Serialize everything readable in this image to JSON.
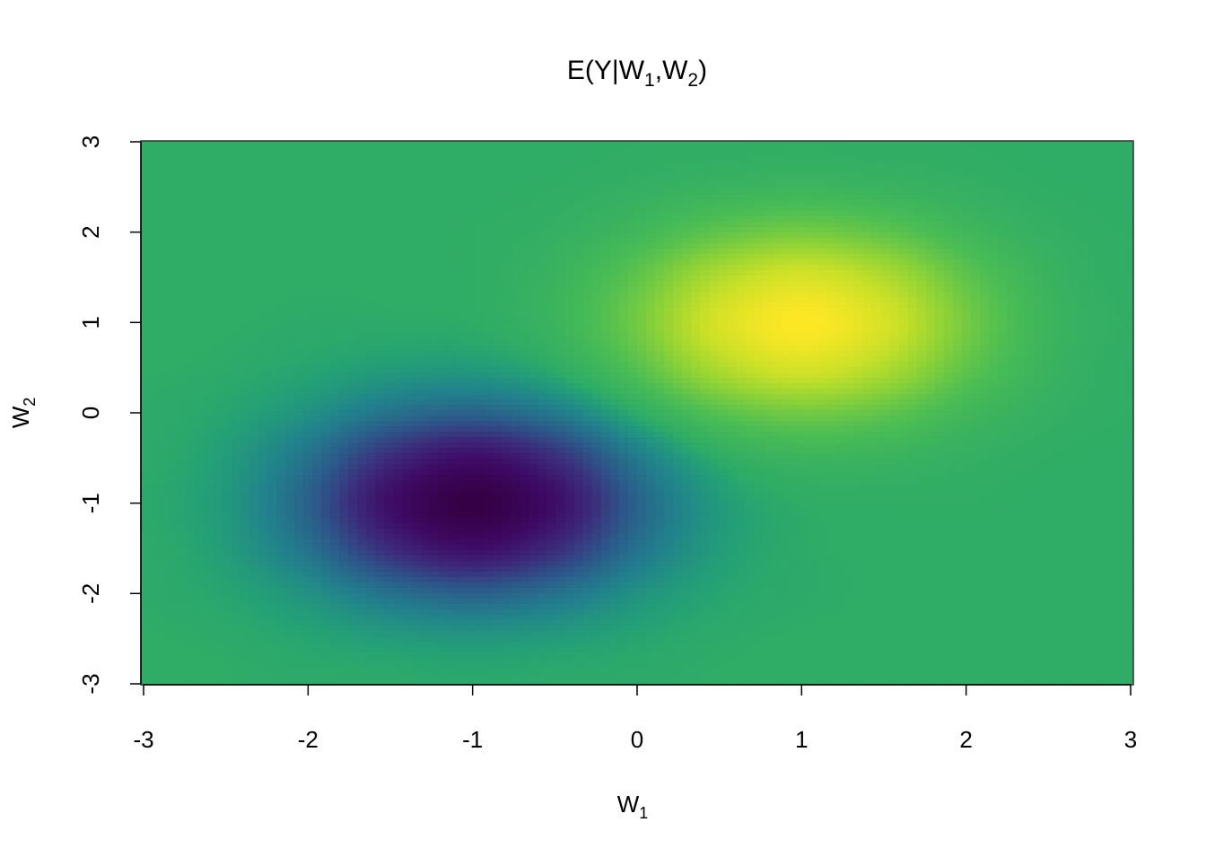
{
  "chart_data": {
    "type": "heatmap",
    "title": {
      "main": "E(Y|W",
      "sub1": "1",
      "sep": ",W",
      "sub2": "2",
      "close": ")"
    },
    "xlabel": {
      "main": "W",
      "sub": "1"
    },
    "ylabel": {
      "main": "W",
      "sub": "2"
    },
    "xlim": [
      -3,
      3
    ],
    "ylim": [
      -3,
      3
    ],
    "xticks": [
      "-3",
      "-2",
      "-1",
      "0",
      "1",
      "2",
      "3"
    ],
    "yticks": [
      "-3",
      "-2",
      "-1",
      "0",
      "1",
      "2",
      "3"
    ],
    "x": [
      -3,
      -2.5,
      -2,
      -1.5,
      -1,
      -0.5,
      0,
      0.5,
      1,
      1.5,
      2,
      2.5,
      3
    ],
    "y": [
      -3,
      -2.5,
      -2,
      -1.5,
      -1,
      -0.5,
      0,
      0.5,
      1,
      1.5,
      2,
      2.5,
      3
    ],
    "z_rows_by_y": [
      [
        0,
        0,
        -0.01,
        -0.01,
        -0.02,
        -0.01,
        -0.01,
        0,
        0,
        0,
        0,
        0,
        0
      ],
      [
        0,
        -0.01,
        -0.04,
        -0.08,
        -0.1,
        -0.08,
        -0.04,
        -0.01,
        0,
        0,
        0,
        0,
        0
      ],
      [
        -0.01,
        -0.04,
        -0.13,
        -0.28,
        -0.36,
        -0.28,
        -0.13,
        -0.04,
        -0.01,
        0,
        0,
        0,
        0
      ],
      [
        -0.01,
        -0.08,
        -0.28,
        -0.6,
        -0.78,
        -0.6,
        -0.28,
        -0.08,
        -0.01,
        0,
        0,
        0,
        0
      ],
      [
        -0.02,
        -0.1,
        -0.36,
        -0.78,
        -1.0,
        -0.78,
        -0.35,
        -0.09,
        0,
        0.01,
        0.01,
        0,
        0
      ],
      [
        -0.01,
        -0.08,
        -0.28,
        -0.6,
        -0.78,
        -0.59,
        -0.24,
        0,
        0.09,
        0.08,
        0.04,
        0.01,
        0
      ],
      [
        -0.01,
        -0.04,
        -0.13,
        -0.28,
        -0.35,
        -0.24,
        0,
        0.24,
        0.35,
        0.28,
        0.13,
        0.04,
        0.01
      ],
      [
        0,
        -0.01,
        -0.04,
        -0.08,
        -0.09,
        0,
        0.24,
        0.59,
        0.78,
        0.6,
        0.28,
        0.08,
        0.01
      ],
      [
        0,
        0,
        -0.01,
        -0.01,
        0,
        0.09,
        0.35,
        0.78,
        1.0,
        0.78,
        0.36,
        0.1,
        0.02
      ],
      [
        0,
        0,
        0,
        0,
        0.01,
        0.08,
        0.28,
        0.6,
        0.78,
        0.6,
        0.28,
        0.08,
        0.01
      ],
      [
        0,
        0,
        0,
        0,
        0.01,
        0.04,
        0.13,
        0.28,
        0.36,
        0.28,
        0.13,
        0.04,
        0.01
      ],
      [
        0,
        0,
        0,
        0,
        0,
        0.01,
        0.04,
        0.08,
        0.1,
        0.08,
        0.04,
        0.01,
        0
      ],
      [
        0,
        0,
        0,
        0,
        0,
        0,
        0.01,
        0.01,
        0.02,
        0.01,
        0.01,
        0,
        0
      ]
    ],
    "colorscale": "viridis",
    "colors": {
      "low": "#360046",
      "background": "#2FAC66",
      "high": "#FDE725"
    },
    "grid": false,
    "legend": "none"
  }
}
